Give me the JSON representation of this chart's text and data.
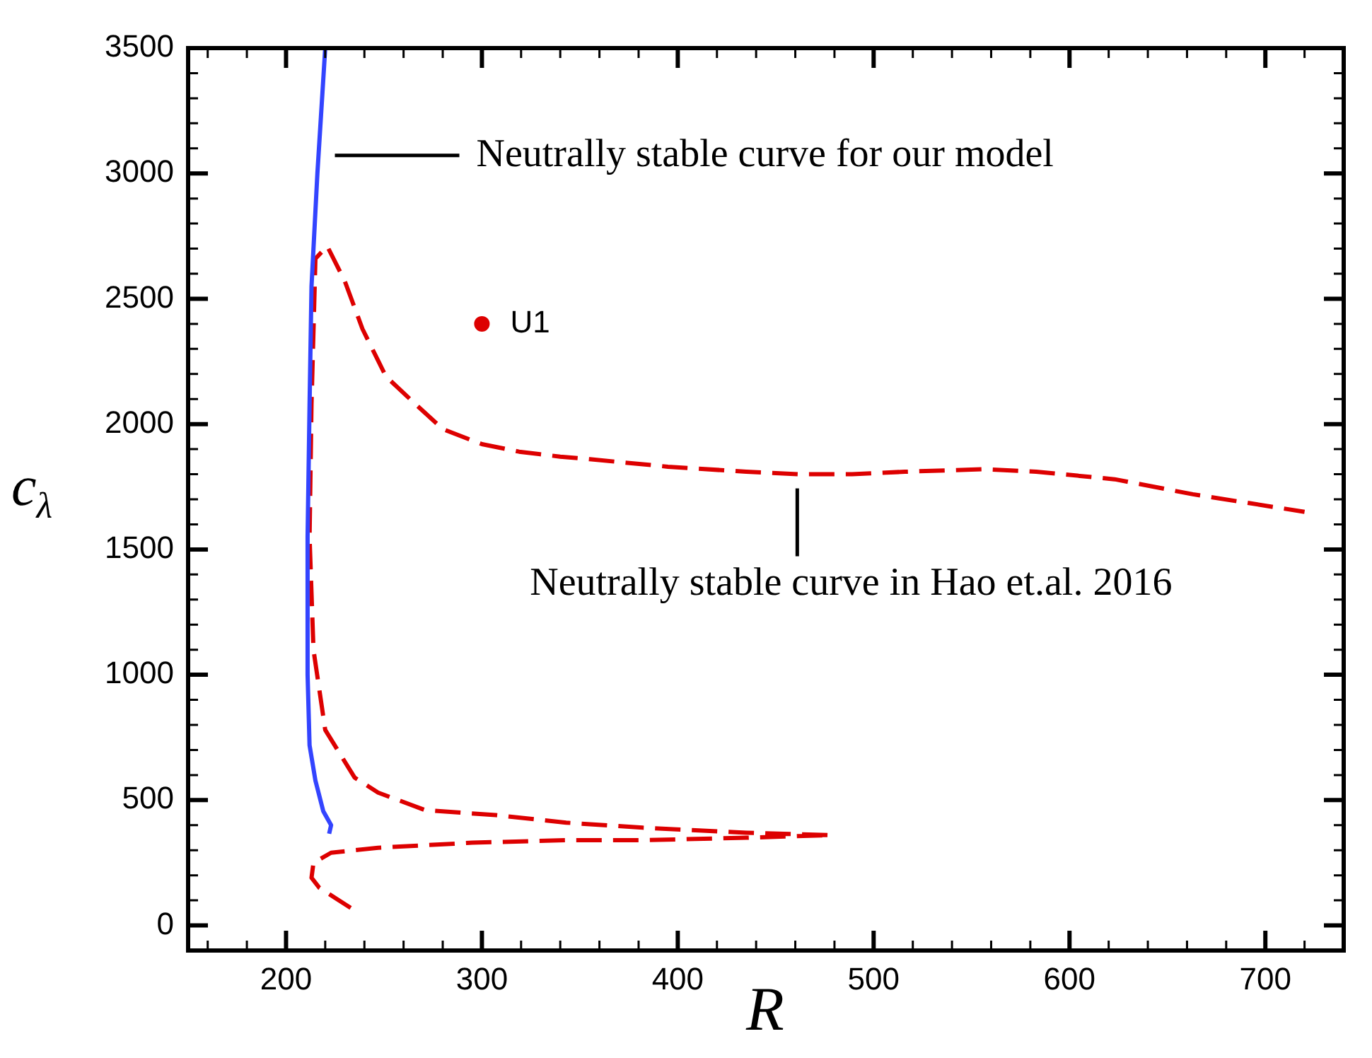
{
  "chart_data": {
    "type": "line",
    "xlabel": "R",
    "ylabel": "c$_{λ}$",
    "xlim": [
      150,
      740
    ],
    "xticks": [
      {
        "value": 160,
        "label": null
      },
      {
        "value": 180,
        "label": null
      },
      200,
      {
        "value": 220,
        "label": null
      },
      {
        "value": 240,
        "label": null
      },
      {
        "value": 260,
        "label": null
      },
      {
        "value": 280,
        "label": null
      },
      300,
      {
        "value": 320,
        "label": null
      },
      {
        "value": 340,
        "label": null
      },
      {
        "value": 360,
        "label": null
      },
      {
        "value": 380,
        "label": null
      },
      400,
      {
        "value": 420,
        "label": null
      },
      {
        "value": 440,
        "label": null
      },
      {
        "value": 460,
        "label": null
      },
      {
        "value": 480,
        "label": null
      },
      500,
      {
        "value": 520,
        "label": null
      },
      {
        "value": 540,
        "label": null
      },
      {
        "value": 560,
        "label": null
      },
      {
        "value": 580,
        "label": null
      },
      600,
      {
        "value": 620,
        "label": null
      },
      {
        "value": 640,
        "label": null
      },
      {
        "value": 660,
        "label": null
      },
      {
        "value": 680,
        "label": null
      },
      700,
      {
        "value": 720,
        "label": null
      }
    ],
    "ylim": [
      -100,
      3500
    ],
    "yticks": [
      0,
      {
        "value": 100,
        "label": null
      },
      {
        "value": 200,
        "label": null
      },
      {
        "value": 300,
        "label": null
      },
      {
        "value": 400,
        "label": null
      },
      500,
      {
        "value": 600,
        "label": null
      },
      {
        "value": 700,
        "label": null
      },
      {
        "value": 800,
        "label": null
      },
      {
        "value": 900,
        "label": null
      },
      1000,
      {
        "value": 1100,
        "label": null
      },
      {
        "value": 1200,
        "label": null
      },
      {
        "value": 1300,
        "label": null
      },
      {
        "value": 1400,
        "label": null
      },
      1500,
      {
        "value": 1600,
        "label": null
      },
      {
        "value": 1700,
        "label": null
      },
      {
        "value": 1800,
        "label": null
      },
      {
        "value": 1900,
        "label": null
      },
      2000,
      {
        "value": 2100,
        "label": null
      },
      {
        "value": 2200,
        "label": null
      },
      {
        "value": 2300,
        "label": null
      },
      {
        "value": 2400,
        "label": null
      },
      2500,
      {
        "value": 2600,
        "label": null
      },
      {
        "value": 2700,
        "label": null
      },
      {
        "value": 2800,
        "label": null
      },
      {
        "value": 2900,
        "label": null
      },
      3000,
      {
        "value": 3100,
        "label": null
      },
      {
        "value": 3200,
        "label": null
      },
      {
        "value": 3300,
        "label": null
      },
      {
        "value": 3400,
        "label": null
      },
      3500
    ],
    "grid": false,
    "legend": false,
    "marker": "none",
    "series": [
      {
        "color": "#3344ff",
        "line_style": "solid",
        "x": [
          222,
          223,
          219,
          215,
          212,
          211,
          211,
          212,
          213,
          216,
          220
        ],
        "values": [
          366,
          400,
          456,
          578,
          719,
          1000,
          1550,
          2075,
          2550,
          3000,
          3500
        ]
      },
      {
        "color": "#dd0000",
        "line_style": "dashed",
        "x": [
          233,
          217,
          213,
          214,
          223,
          247,
          295,
          343,
          382,
          435,
          478,
          435,
          382,
          343,
          307,
          271,
          247,
          235,
          220,
          214,
          212,
          213,
          215,
          221,
          230,
          239,
          251,
          266,
          280,
          300,
          319,
          340,
          355,
          395,
          435,
          462,
          489,
          516,
          556,
          583,
          623,
          663,
          720
        ],
        "values": [
          70,
          150,
          190,
          250,
          290,
          310,
          330,
          340,
          340,
          350,
          360,
          370,
          390,
          410,
          440,
          460,
          530,
          590,
          780,
          1100,
          1550,
          2080,
          2660,
          2710,
          2570,
          2380,
          2190,
          2080,
          1980,
          1920,
          1890,
          1870,
          1860,
          1830,
          1810,
          1800,
          1800,
          1810,
          1820,
          1810,
          1780,
          1720,
          1650
        ]
      },
      {
        "type": "scatter",
        "color": "#dd0000",
        "marker": "circle",
        "x": [
          300
        ],
        "values": [
          2400
        ]
      }
    ],
    "annotations": [
      "Neutrally stable curve for our model",
      {
        "text": "Neutrally stable curve in Hao et.al. 2016",
        "x": 461,
        "y": 1800
      },
      {
        "text": "U1",
        "x": 300,
        "y": 2400
      }
    ]
  }
}
